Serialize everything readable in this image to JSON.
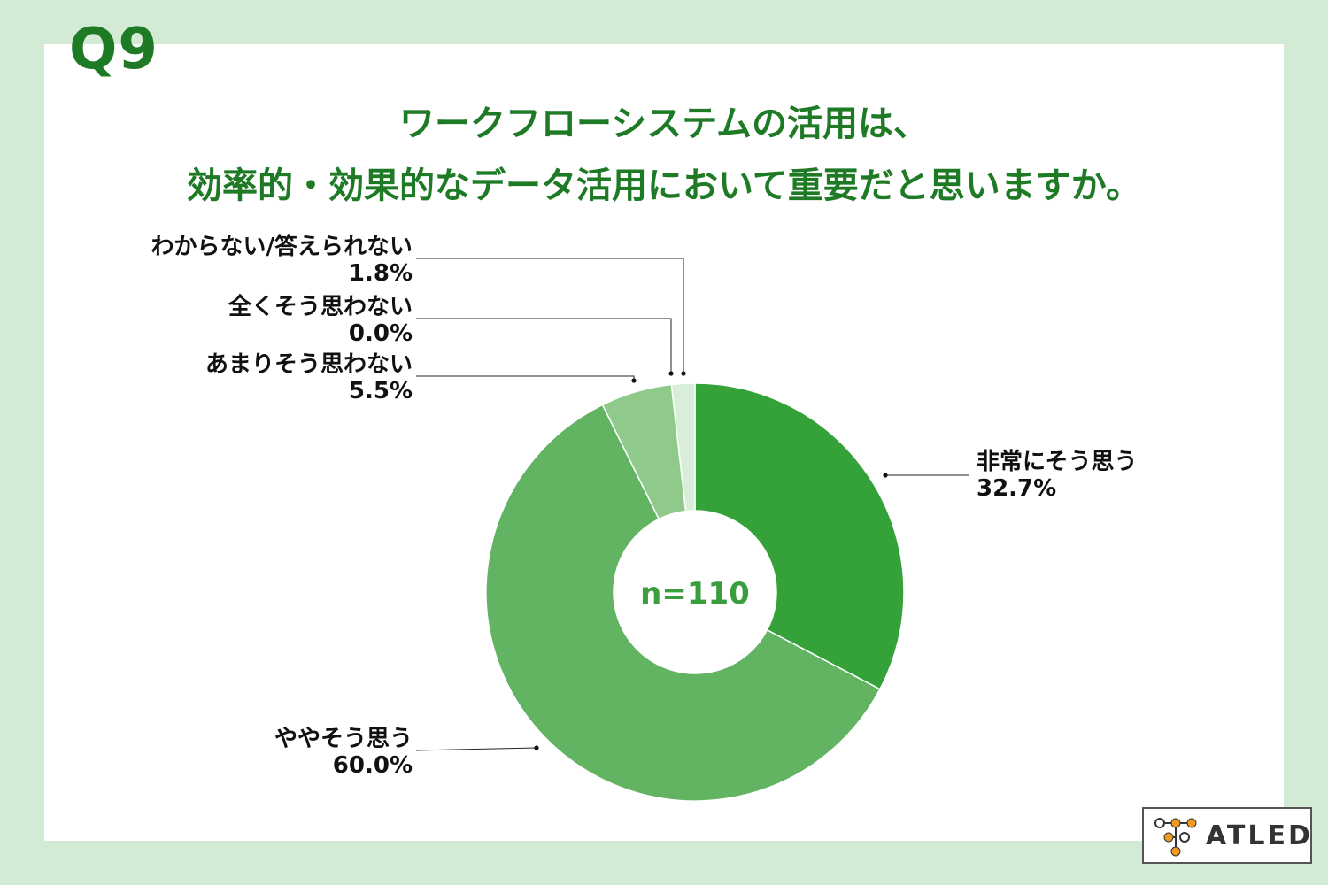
{
  "question_number": "Q9",
  "title_lines": [
    "ワークフローシステムの活用は、",
    "効率的・効果的なデータ活用において重要だと思いますか。"
  ],
  "chart_data": {
    "type": "pie",
    "donut": true,
    "center_label": "n=110",
    "start": "top",
    "direction": "clockwise",
    "slices": [
      {
        "label": "非常にそう思う",
        "value": 32.7,
        "value_label": "32.7%",
        "color": "#35a139"
      },
      {
        "label": "ややそう思う",
        "value": 60.0,
        "value_label": "60.0%",
        "color": "#62b463"
      },
      {
        "label": "あまりそう思わない",
        "value": 5.5,
        "value_label": "5.5%",
        "color": "#8fca8b"
      },
      {
        "label": "全くそう思わない",
        "value": 0.0,
        "value_label": "0.0%",
        "color": "#bfe0bc"
      },
      {
        "label": "わからない/答えられない",
        "value": 1.8,
        "value_label": "1.8%",
        "color": "#d9eed8"
      }
    ]
  },
  "colors": {
    "background": "#d3ead5",
    "panel": "#ffffff",
    "title": "#1e7a25"
  },
  "logo": {
    "text": "ATLED"
  }
}
